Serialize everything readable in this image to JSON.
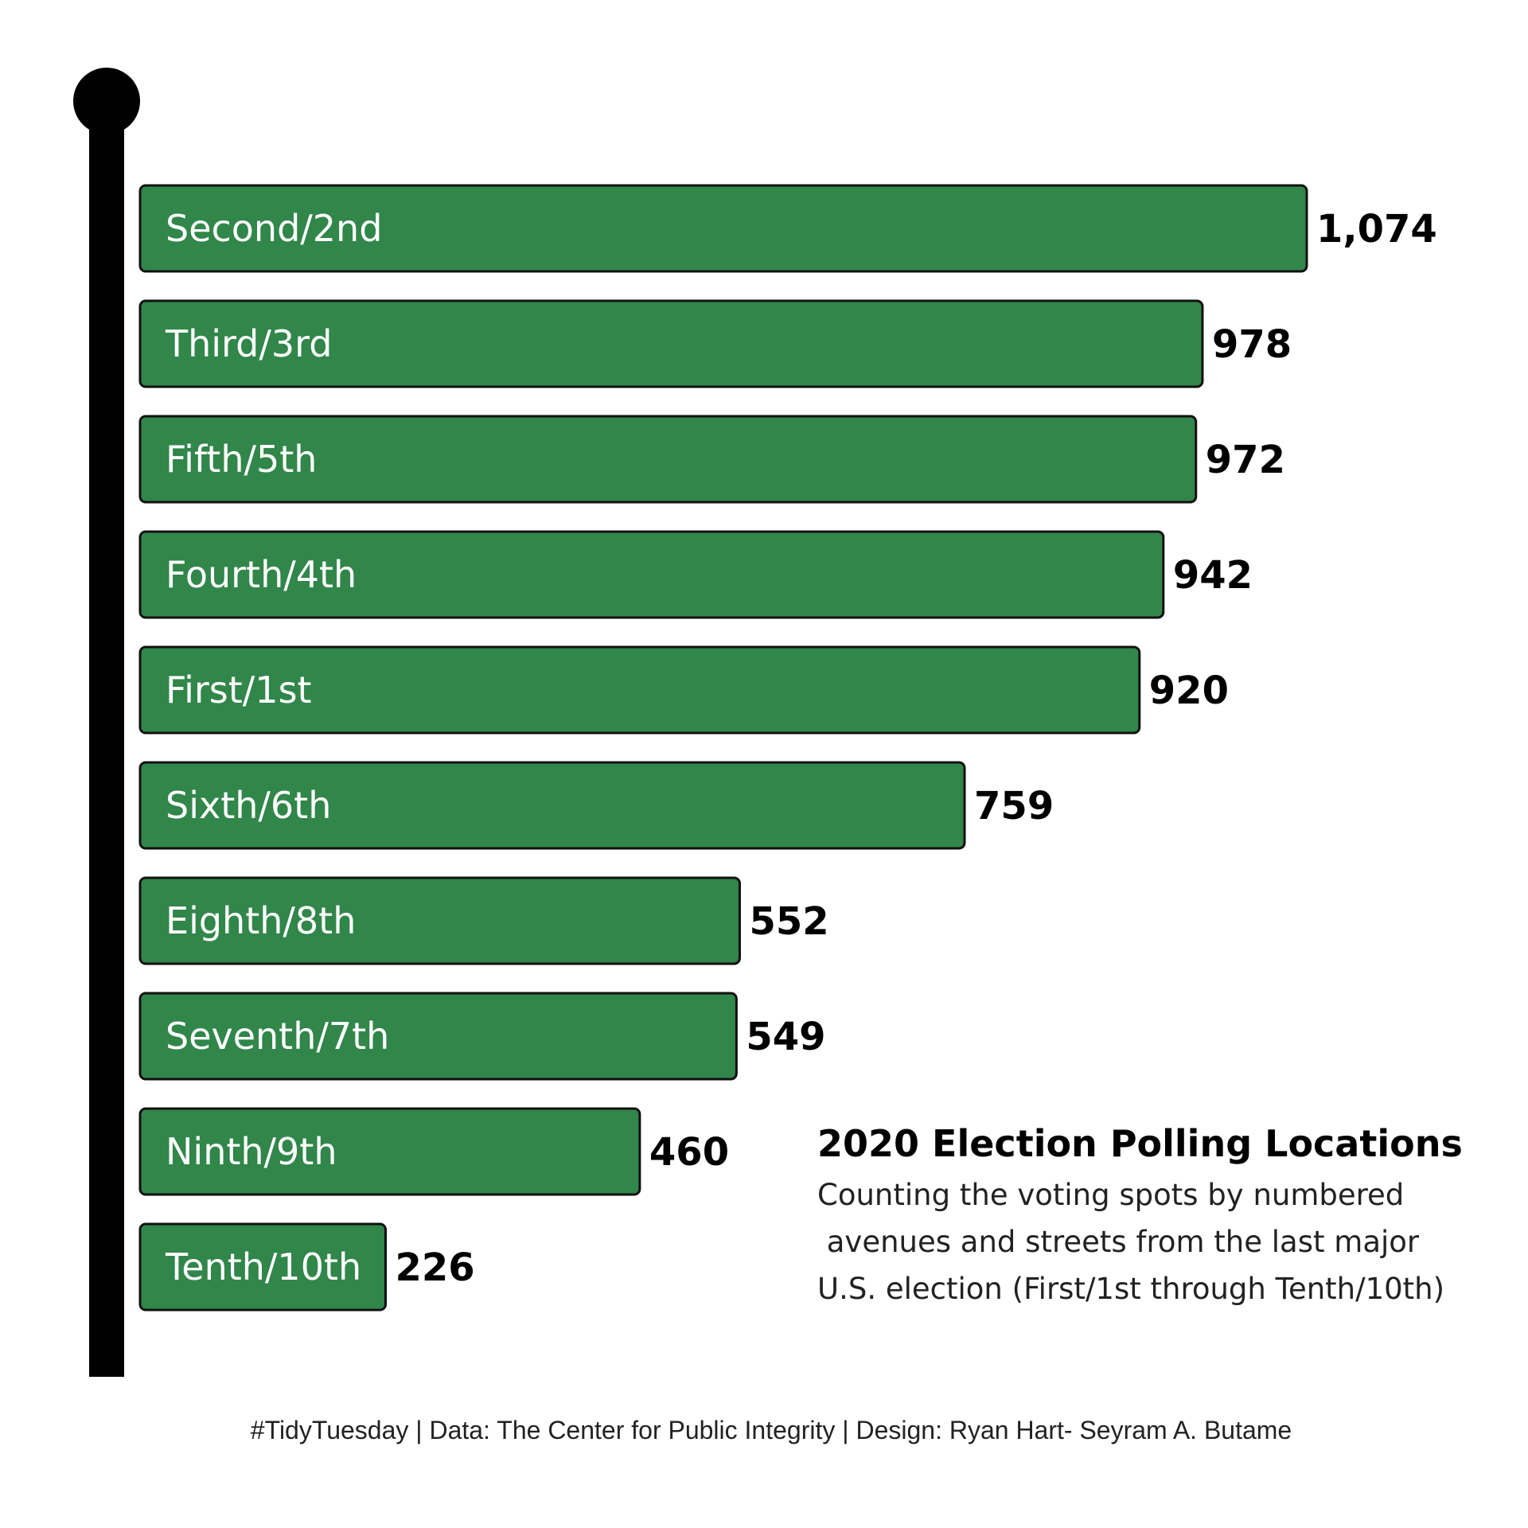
{
  "colors": {
    "bar_fill": "#31864a",
    "bar_stroke": "#111111",
    "pole": "#000000",
    "background": "#ffffff"
  },
  "chart_data": {
    "type": "bar",
    "orientation": "horizontal",
    "title": "2020 Election Polling Locations",
    "subtitle_lines": [
      "Counting the voting spots by numbered",
      " avenues and streets from the last major",
      "U.S. election (First/1st through Tenth/10th)"
    ],
    "categories": [
      "Second/2nd",
      "Third/3rd",
      "Fifth/5th",
      "Fourth/4th",
      "First/1st",
      "Sixth/6th",
      "Eighth/8th",
      "Seventh/7th",
      "Ninth/9th",
      "Tenth/10th"
    ],
    "values": [
      1074,
      978,
      972,
      942,
      920,
      759,
      552,
      549,
      460,
      226
    ],
    "value_labels": [
      "1,074",
      "978",
      "972",
      "942",
      "920",
      "759",
      "552",
      "549",
      "460",
      "226"
    ],
    "xlim": [
      0,
      1074
    ],
    "xlabel": "",
    "ylabel": "",
    "grid": false,
    "legend": "none"
  },
  "caption": "#TidyTuesday | Data: The Center for Public Integrity | Design: Ryan Hart- Seyram A. Butame"
}
